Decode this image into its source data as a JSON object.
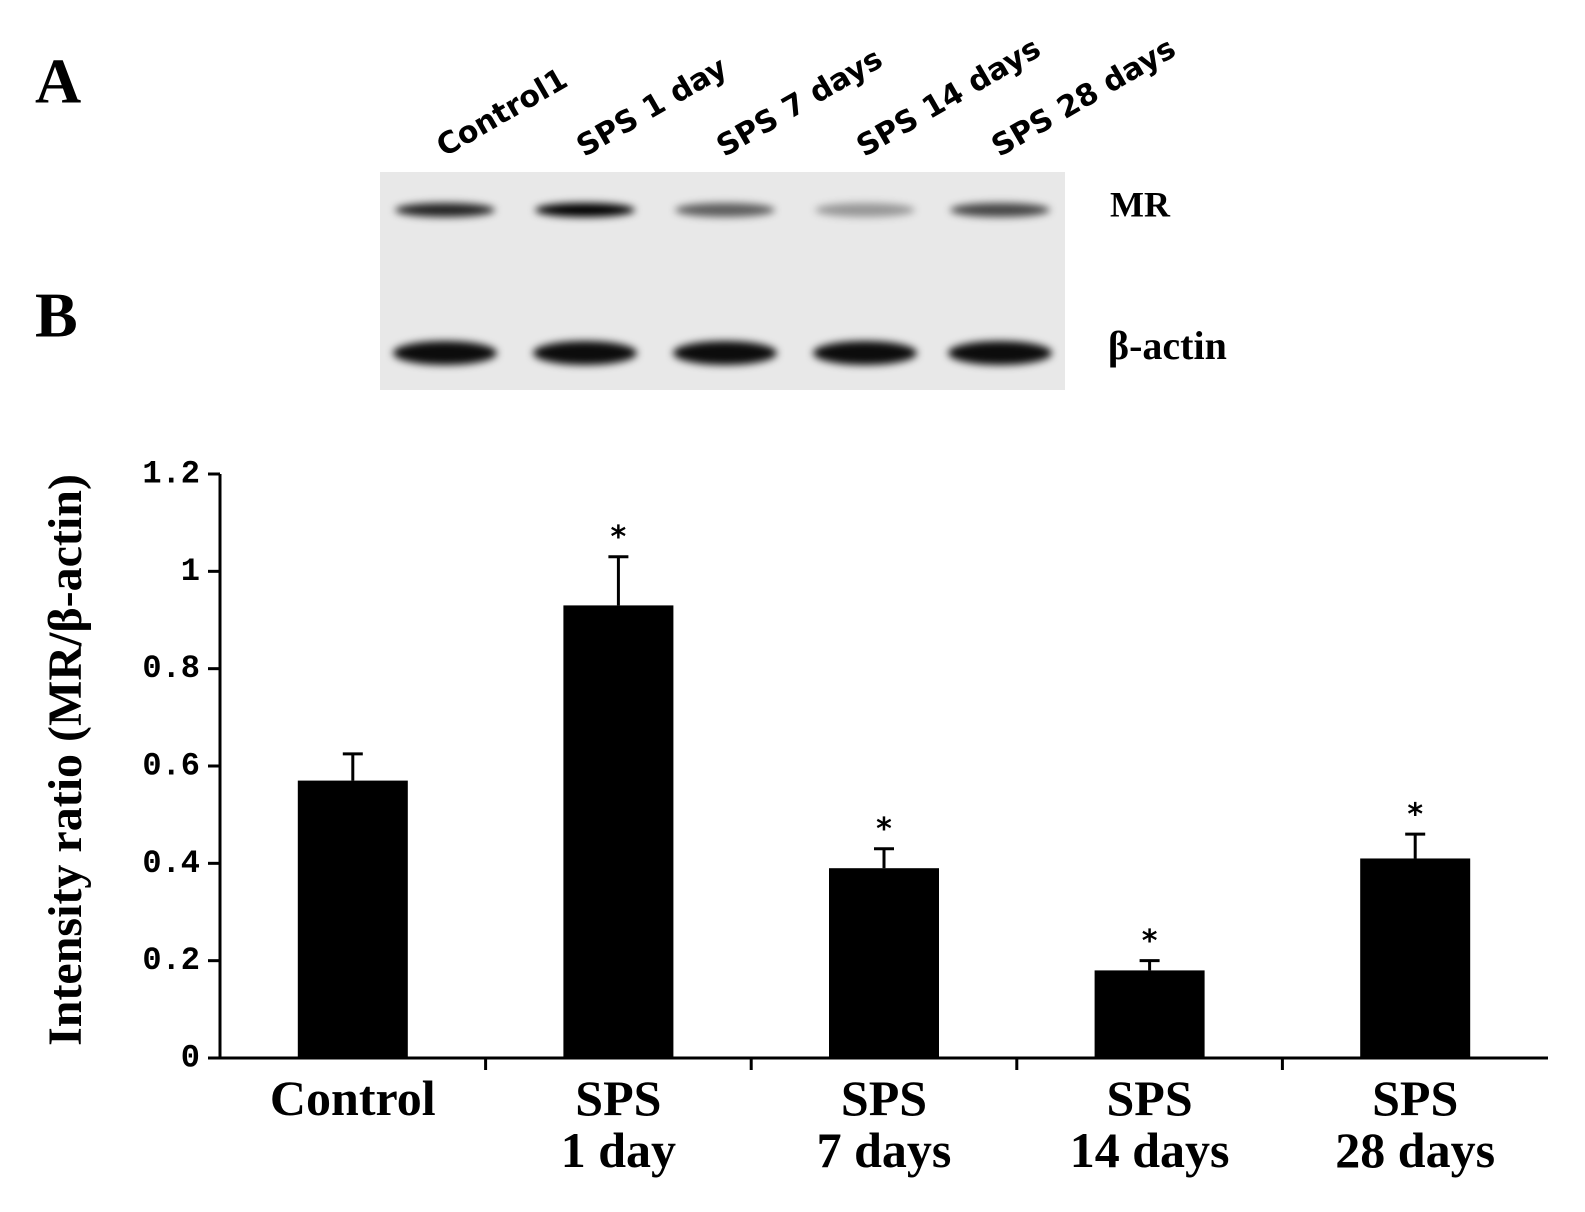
{
  "panels": {
    "a": "A",
    "b": "B"
  },
  "blot": {
    "lanes": [
      "Control1",
      "SPS  1 day",
      "SPS  7 days",
      "SPS  14 days",
      "SPS  28 days"
    ],
    "bands": [
      "MR",
      "β-actin"
    ]
  },
  "chart_data": {
    "type": "bar",
    "y_label": "Intensity ratio (MR/β-actin)",
    "categories": [
      "Control",
      "SPS\n1 day",
      "SPS\n7 days",
      "SPS\n14 days",
      "SPS\n28 days"
    ],
    "values": [
      0.57,
      0.93,
      0.39,
      0.18,
      0.41
    ],
    "errors": [
      0.055,
      0.1,
      0.04,
      0.02,
      0.05
    ],
    "annotations": [
      null,
      "*",
      "*",
      "*",
      "*"
    ],
    "color": "#000000",
    "ylim": [
      0,
      1.2
    ],
    "yticks": [
      0,
      0.2,
      0.4,
      0.6,
      0.8,
      1,
      1.2
    ]
  }
}
